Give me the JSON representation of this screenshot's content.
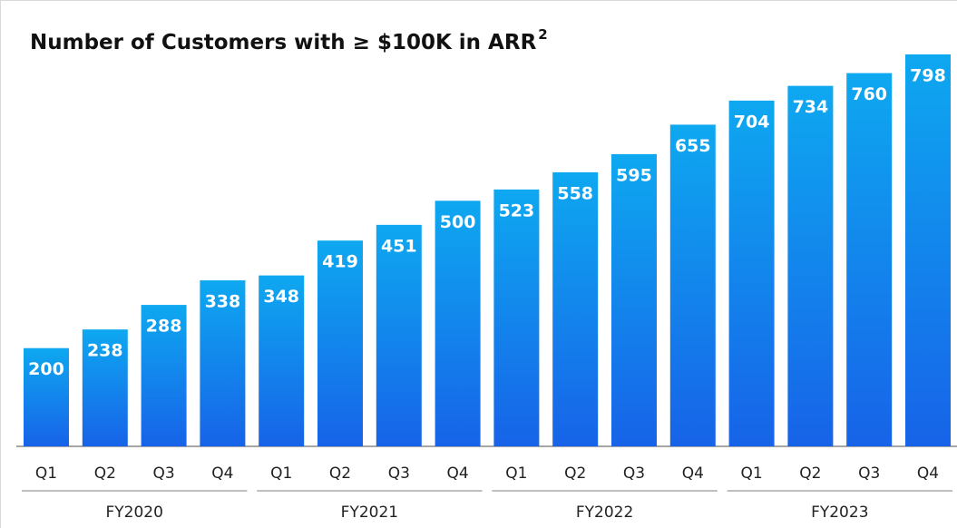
{
  "chart_data": {
    "type": "bar",
    "title": "Number of Customers with ≥ $100K in ARR",
    "title_superscript": "2",
    "categories": [
      "Q1",
      "Q2",
      "Q3",
      "Q4",
      "Q1",
      "Q2",
      "Q3",
      "Q4",
      "Q1",
      "Q2",
      "Q3",
      "Q4",
      "Q1",
      "Q2",
      "Q3",
      "Q4"
    ],
    "groups": [
      "FY2020",
      "FY2021",
      "FY2022",
      "FY2023"
    ],
    "values": [
      200,
      238,
      288,
      338,
      348,
      419,
      451,
      500,
      523,
      558,
      595,
      655,
      704,
      734,
      760,
      798
    ],
    "color": [
      "#0ea8f0",
      "#1763e8"
    ]
  }
}
